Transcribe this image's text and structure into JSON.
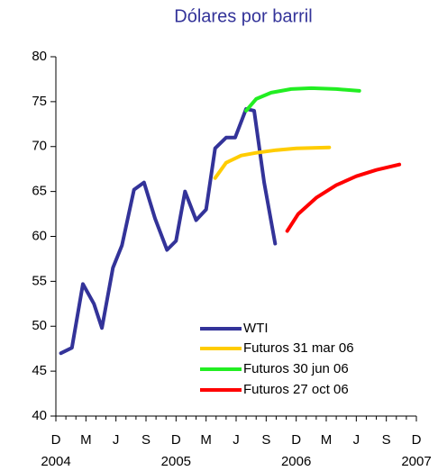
{
  "chart_data": {
    "type": "line",
    "title": "Dólares por barril",
    "xlim": [
      0,
      36
    ],
    "xticks": [
      {
        "value": 0,
        "label": "D"
      },
      {
        "value": 3,
        "label": "M"
      },
      {
        "value": 6,
        "label": "J"
      },
      {
        "value": 9,
        "label": "S"
      },
      {
        "value": 12,
        "label": "D"
      },
      {
        "value": 15,
        "label": "M"
      },
      {
        "value": 18,
        "label": "J"
      },
      {
        "value": 21,
        "label": "S"
      },
      {
        "value": 24,
        "label": "D"
      },
      {
        "value": 27,
        "label": "M"
      },
      {
        "value": 30,
        "label": "J"
      },
      {
        "value": 33,
        "label": "S"
      },
      {
        "value": 36,
        "label": "D"
      }
    ],
    "x_minor_ticks": [
      1,
      2,
      4,
      5,
      7,
      8,
      10,
      11,
      13,
      14,
      16,
      17,
      19,
      20,
      22,
      23,
      25,
      26,
      28,
      29,
      31,
      32,
      34,
      35
    ],
    "x_year_labels": [
      {
        "value": 0,
        "label": "2004"
      },
      {
        "value": 12,
        "label": "2005"
      },
      {
        "value": 24,
        "label": "2006"
      },
      {
        "value": 36,
        "label": "2007"
      }
    ],
    "ylim": [
      40,
      80
    ],
    "yticks": [
      40,
      45,
      50,
      55,
      60,
      65,
      70,
      75,
      80
    ],
    "grid": false,
    "legend": "lower right",
    "series": [
      {
        "name": "WTI",
        "color": "#333399",
        "x": [
          0.5,
          1.6,
          2.7,
          3.8,
          4.6,
          5.7,
          6.6,
          7.8,
          8.8,
          9.9,
          11.1,
          12,
          12.9,
          14,
          15,
          15.9,
          17,
          17.9,
          19,
          19.8,
          20.8,
          21.9
        ],
        "values": [
          47.0,
          47.6,
          54.7,
          52.5,
          49.8,
          56.5,
          59,
          65.2,
          66,
          62,
          58.5,
          59.5,
          65,
          61.8,
          63,
          69.8,
          71,
          71,
          74.2,
          74,
          66,
          59.2
        ]
      },
      {
        "name": "Futuros 31 mar 06",
        "color": "#ffcc00",
        "x": [
          15.9,
          17,
          18.5,
          20,
          22,
          24,
          27.3
        ],
        "values": [
          66.5,
          68.2,
          69,
          69.3,
          69.6,
          69.8,
          69.9
        ]
      },
      {
        "name": "Futuros 30 jun 06",
        "color": "#22ee22",
        "x": [
          19,
          20,
          21.5,
          23.5,
          25.5,
          28,
          30.3
        ],
        "values": [
          74,
          75.3,
          76,
          76.4,
          76.5,
          76.4,
          76.2
        ]
      },
      {
        "name": "Futuros 27 oct 06",
        "color": "#ff0000",
        "x": [
          23.1,
          24.2,
          26,
          28,
          30,
          32,
          34.3
        ],
        "values": [
          60.6,
          62.5,
          64.3,
          65.7,
          66.7,
          67.4,
          68
        ]
      }
    ]
  }
}
